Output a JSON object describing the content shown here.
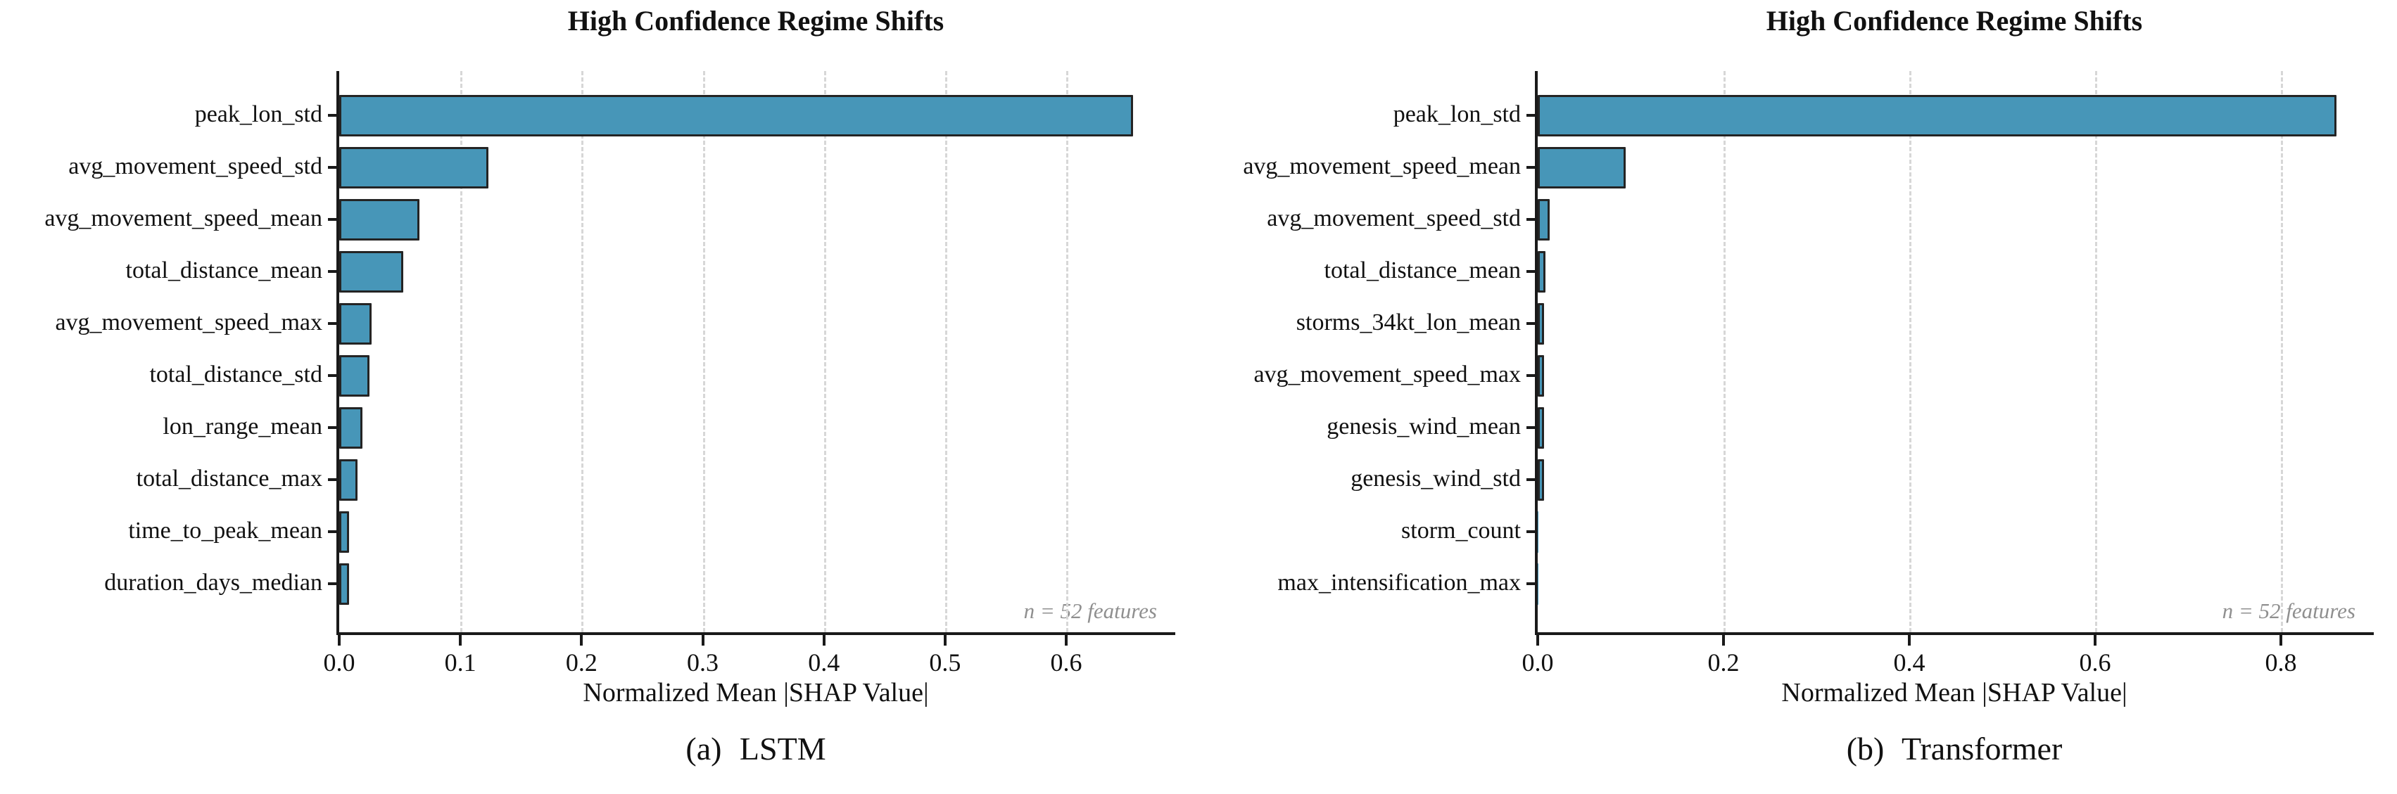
{
  "style": {
    "background": "#ffffff",
    "bar_fill": "#4796B8",
    "bar_edge": "#242424",
    "grid_color": "#d7d7d7",
    "axis_color": "#1a1a1a",
    "note_color": "#8f8f8f"
  },
  "chart_data": [
    {
      "type": "bar",
      "orientation": "horizontal",
      "title": "High Confidence Regime Shifts",
      "caption": "(a) LSTM",
      "xlabel": "Normalized Mean |SHAP Value|",
      "annotation": "n = 52 features",
      "grid": "vertical-dashed",
      "legend": "none",
      "categories": [
        "peak_lon_std",
        "avg_movement_speed_std",
        "avg_movement_speed_mean",
        "total_distance_mean",
        "avg_movement_speed_max",
        "total_distance_std",
        "lon_range_mean",
        "total_distance_max",
        "time_to_peak_mean",
        "duration_days_median"
      ],
      "values": [
        0.655,
        0.123,
        0.066,
        0.053,
        0.027,
        0.025,
        0.019,
        0.015,
        0.008,
        0.008
      ],
      "xlim": [
        0,
        0.69
      ],
      "xticks": [
        0,
        0.1,
        0.2,
        0.3,
        0.4,
        0.5,
        0.6
      ],
      "xtick_labels": [
        "0.0",
        "0.1",
        "0.2",
        "0.3",
        "0.4",
        "0.5",
        "0.6"
      ]
    },
    {
      "type": "bar",
      "orientation": "horizontal",
      "title": "High Confidence Regime Shifts",
      "caption": "(b) Transformer",
      "xlabel": "Normalized Mean |SHAP Value|",
      "annotation": "n = 52 features",
      "grid": "vertical-dashed",
      "legend": "none",
      "categories": [
        "peak_lon_std",
        "avg_movement_speed_mean",
        "avg_movement_speed_std",
        "total_distance_mean",
        "storms_34kt_lon_mean",
        "avg_movement_speed_max",
        "genesis_wind_mean",
        "genesis_wind_std",
        "storm_count",
        "max_intensification_max"
      ],
      "values": [
        0.86,
        0.095,
        0.013,
        0.008,
        0.007,
        0.007,
        0.007,
        0.007,
        0.001,
        0.001
      ],
      "xlim": [
        0,
        0.9
      ],
      "xticks": [
        0,
        0.2,
        0.4,
        0.6,
        0.8
      ],
      "xtick_labels": [
        "0.0",
        "0.2",
        "0.4",
        "0.6",
        "0.8"
      ]
    }
  ]
}
